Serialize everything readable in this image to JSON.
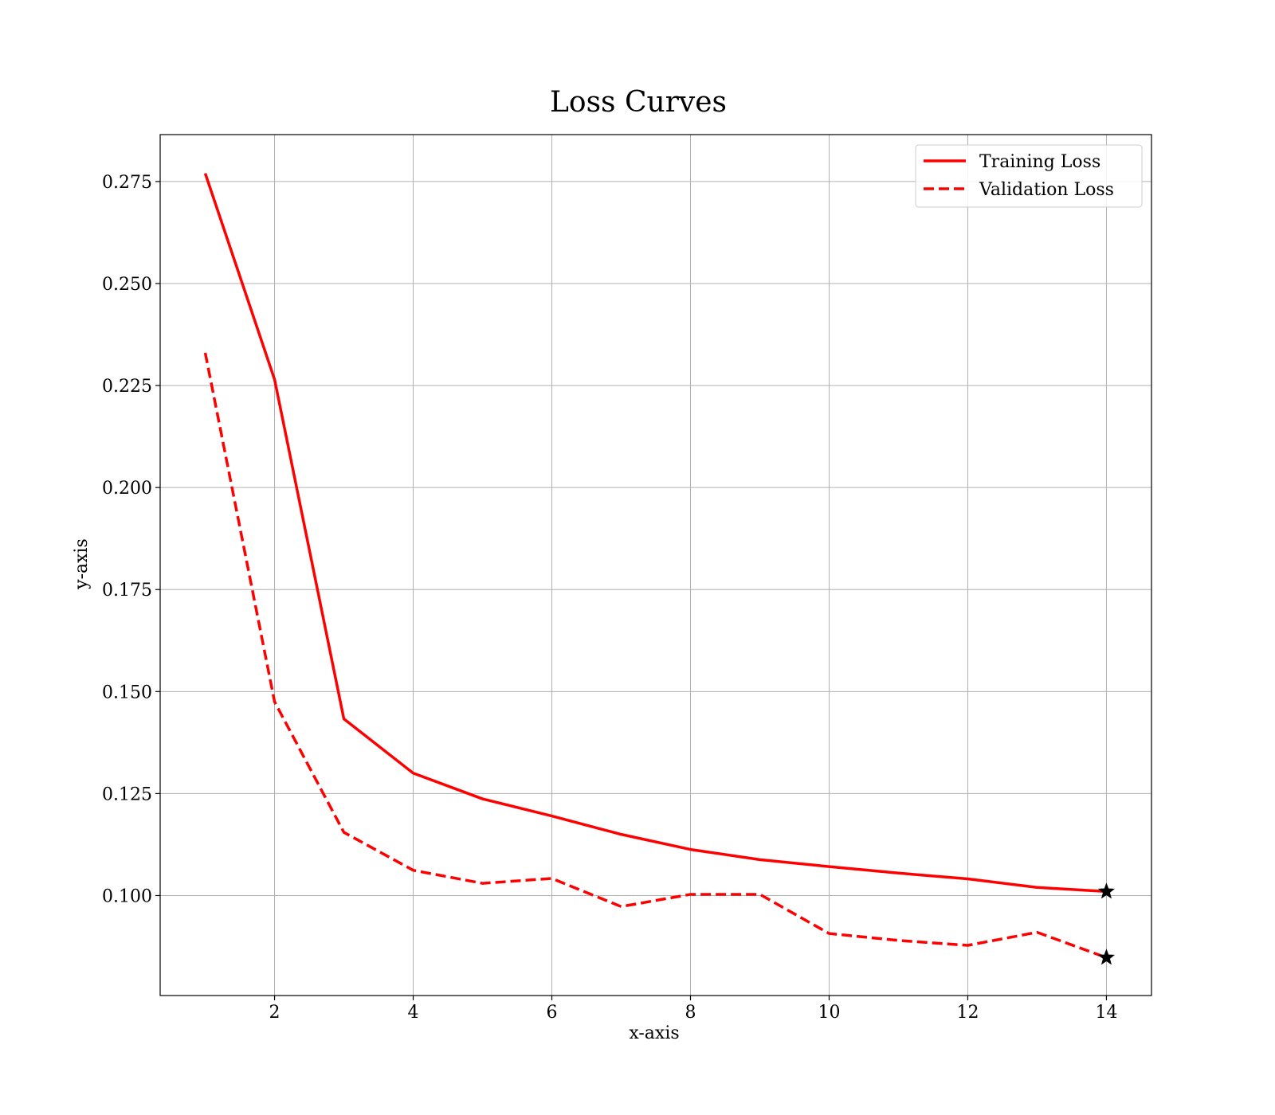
{
  "chart_data": {
    "type": "line",
    "title": "Loss Curves",
    "xlabel": "x-axis",
    "ylabel": "y-axis",
    "xlim": [
      0.35,
      14.65
    ],
    "ylim": [
      0.0755,
      0.2865
    ],
    "xticks": [
      2,
      4,
      6,
      8,
      10,
      12,
      14
    ],
    "xtick_labels": [
      "2",
      "4",
      "6",
      "8",
      "10",
      "12",
      "14"
    ],
    "yticks": [
      0.1,
      0.125,
      0.15,
      0.175,
      0.2,
      0.225,
      0.25,
      0.275
    ],
    "ytick_labels": [
      "0.100",
      "0.125",
      "0.150",
      "0.175",
      "0.200",
      "0.225",
      "0.250",
      "0.275"
    ],
    "grid": true,
    "legend_position": "top-right",
    "x": [
      1,
      2,
      3,
      4,
      5,
      6,
      7,
      8,
      9,
      10,
      11,
      12,
      13,
      14
    ],
    "series": [
      {
        "name": "Training Loss",
        "style": "solid",
        "color": "#ff0000",
        "values": [
          0.277,
          0.2265,
          0.1433,
          0.13,
          0.1237,
          0.1195,
          0.115,
          0.1113,
          0.1088,
          0.1071,
          0.1055,
          0.1041,
          0.102,
          0.101
        ]
      },
      {
        "name": "Validation Loss",
        "style": "dashed",
        "color": "#ff0000",
        "values": [
          0.233,
          0.1475,
          0.1155,
          0.1062,
          0.103,
          0.1042,
          0.0973,
          0.1003,
          0.1003,
          0.0907,
          0.089,
          0.0878,
          0.091,
          0.0848
        ]
      }
    ],
    "annotations": [
      {
        "type": "star-marker",
        "x": 14,
        "y": 0.101,
        "color": "#000000"
      },
      {
        "type": "star-marker",
        "x": 14,
        "y": 0.0848,
        "color": "#000000"
      }
    ]
  }
}
